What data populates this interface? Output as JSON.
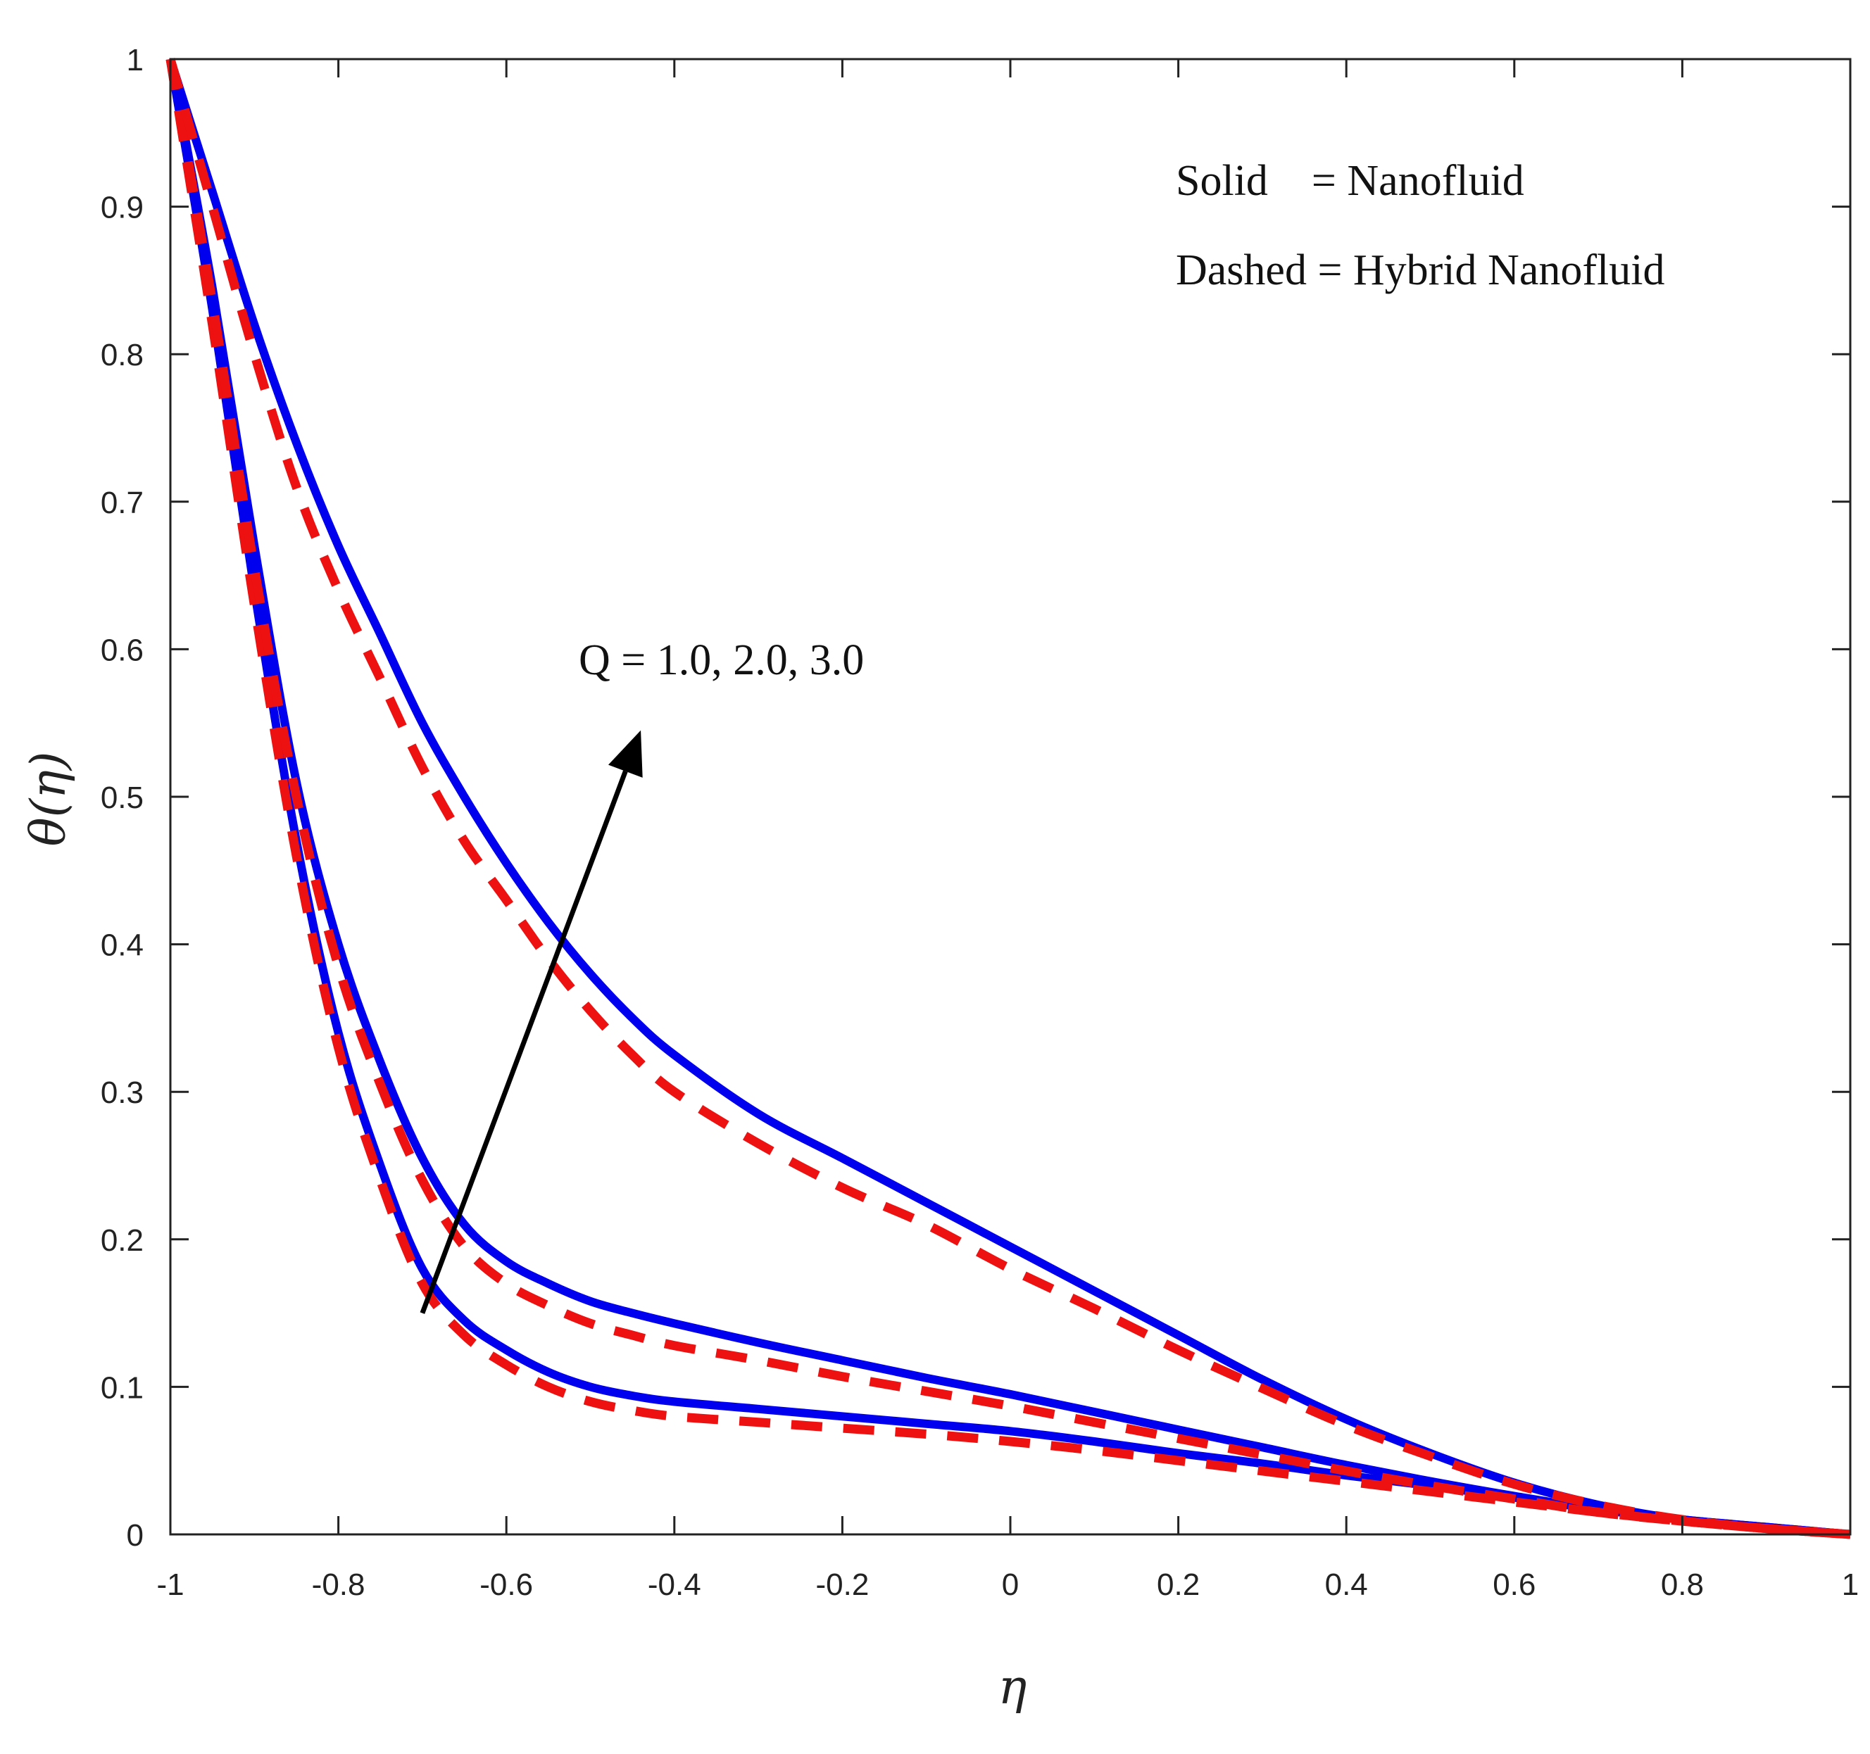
{
  "chart_data": {
    "type": "line",
    "title": "",
    "xlabel": "η",
    "ylabel": "θ(η)",
    "xlim": [
      -1,
      1
    ],
    "ylim": [
      0,
      1
    ],
    "xticks": [
      -1,
      -0.8,
      -0.6,
      -0.4,
      -0.2,
      0,
      0.2,
      0.4,
      0.6,
      0.8,
      1
    ],
    "xtick_labels": [
      "-1",
      "-0.8",
      "-0.6",
      "-0.4",
      "-0.2",
      "0",
      "0.2",
      "0.4",
      "0.6",
      "0.8",
      "1"
    ],
    "yticks": [
      0,
      0.1,
      0.2,
      0.3,
      0.4,
      0.5,
      0.6,
      0.7,
      0.8,
      0.9,
      1
    ],
    "ytick_labels": [
      "0",
      "0.1",
      "0.2",
      "0.3",
      "0.4",
      "0.5",
      "0.6",
      "0.7",
      "0.8",
      "0.9",
      "1"
    ],
    "legend": {
      "solid": "Solid    = Nanofluid",
      "dashed": "Dashed = Hybrid Nanofluid"
    },
    "annotation": {
      "text": "Q = 1.0, 2.0, 3.0",
      "arrow_from": [
        -0.7,
        0.15
      ],
      "arrow_to": [
        -0.44,
        0.545
      ]
    },
    "colors": {
      "solid": "#0000ee",
      "dashed": "#ee1111",
      "arrow": "#000000",
      "axes": "#222222"
    },
    "series": [
      {
        "name": "Nanofluid, Q = 1.0",
        "style": "solid",
        "x": [
          -1,
          -0.95,
          -0.9,
          -0.85,
          -0.8,
          -0.75,
          -0.7,
          -0.65,
          -0.6,
          -0.55,
          -0.5,
          -0.45,
          -0.4,
          -0.3,
          -0.2,
          -0.1,
          0,
          0.1,
          0.2,
          0.3,
          0.4,
          0.5,
          0.6,
          0.7,
          0.8,
          0.9,
          1
        ],
        "y": [
          1,
          0.83,
          0.64,
          0.47,
          0.34,
          0.25,
          0.18,
          0.145,
          0.125,
          0.11,
          0.1,
          0.094,
          0.09,
          0.085,
          0.08,
          0.075,
          0.07,
          0.063,
          0.055,
          0.048,
          0.04,
          0.033,
          0.025,
          0.017,
          0.01,
          0.005,
          0
        ]
      },
      {
        "name": "Hybrid Nanofluid, Q = 1.0",
        "style": "dashed",
        "x": [
          -1,
          -0.95,
          -0.9,
          -0.85,
          -0.8,
          -0.75,
          -0.7,
          -0.65,
          -0.6,
          -0.55,
          -0.5,
          -0.45,
          -0.4,
          -0.3,
          -0.2,
          -0.1,
          0,
          0.1,
          0.2,
          0.3,
          0.4,
          0.5,
          0.6,
          0.7,
          0.8,
          0.9,
          1
        ],
        "y": [
          1,
          0.82,
          0.63,
          0.46,
          0.33,
          0.24,
          0.17,
          0.135,
          0.115,
          0.1,
          0.09,
          0.084,
          0.08,
          0.076,
          0.072,
          0.068,
          0.063,
          0.057,
          0.05,
          0.043,
          0.036,
          0.029,
          0.022,
          0.015,
          0.009,
          0.004,
          0
        ]
      },
      {
        "name": "Nanofluid, Q = 2.0",
        "style": "solid",
        "x": [
          -1,
          -0.95,
          -0.9,
          -0.85,
          -0.8,
          -0.75,
          -0.7,
          -0.65,
          -0.6,
          -0.55,
          -0.5,
          -0.45,
          -0.4,
          -0.3,
          -0.2,
          -0.1,
          0,
          0.1,
          0.2,
          0.3,
          0.4,
          0.5,
          0.6,
          0.7,
          0.8,
          0.9,
          1
        ],
        "y": [
          1,
          0.845,
          0.67,
          0.51,
          0.4,
          0.32,
          0.255,
          0.21,
          0.185,
          0.17,
          0.158,
          0.15,
          0.143,
          0.13,
          0.118,
          0.106,
          0.095,
          0.083,
          0.071,
          0.059,
          0.047,
          0.036,
          0.026,
          0.017,
          0.01,
          0.005,
          0
        ]
      },
      {
        "name": "Hybrid Nanofluid, Q = 2.0",
        "style": "dashed",
        "x": [
          -1,
          -0.95,
          -0.9,
          -0.85,
          -0.8,
          -0.75,
          -0.7,
          -0.65,
          -0.6,
          -0.55,
          -0.5,
          -0.45,
          -0.4,
          -0.3,
          -0.2,
          -0.1,
          0,
          0.1,
          0.2,
          0.3,
          0.4,
          0.5,
          0.6,
          0.7,
          0.8,
          0.9,
          1
        ],
        "y": [
          1,
          0.835,
          0.655,
          0.5,
          0.385,
          0.305,
          0.24,
          0.195,
          0.17,
          0.155,
          0.143,
          0.135,
          0.128,
          0.118,
          0.107,
          0.097,
          0.087,
          0.076,
          0.065,
          0.054,
          0.043,
          0.033,
          0.024,
          0.015,
          0.009,
          0.004,
          0
        ]
      },
      {
        "name": "Nanofluid, Q = 3.0",
        "style": "solid",
        "x": [
          -1,
          -0.95,
          -0.9,
          -0.85,
          -0.8,
          -0.75,
          -0.7,
          -0.65,
          -0.6,
          -0.55,
          -0.5,
          -0.45,
          -0.4,
          -0.3,
          -0.2,
          -0.1,
          0,
          0.1,
          0.2,
          0.3,
          0.4,
          0.5,
          0.6,
          0.7,
          0.8,
          0.9,
          1
        ],
        "y": [
          1,
          0.91,
          0.82,
          0.74,
          0.67,
          0.61,
          0.55,
          0.5,
          0.455,
          0.415,
          0.38,
          0.35,
          0.325,
          0.285,
          0.255,
          0.225,
          0.195,
          0.165,
          0.135,
          0.105,
          0.078,
          0.055,
          0.035,
          0.02,
          0.01,
          0.004,
          0
        ]
      },
      {
        "name": "Hybrid Nanofluid, Q = 3.0",
        "style": "dashed",
        "x": [
          -1,
          -0.95,
          -0.9,
          -0.85,
          -0.8,
          -0.75,
          -0.7,
          -0.65,
          -0.6,
          -0.55,
          -0.5,
          -0.45,
          -0.4,
          -0.3,
          -0.2,
          -0.1,
          0,
          0.1,
          0.2,
          0.3,
          0.4,
          0.5,
          0.6,
          0.7,
          0.8,
          0.9,
          1
        ],
        "y": [
          1,
          0.9,
          0.8,
          0.71,
          0.64,
          0.58,
          0.52,
          0.47,
          0.43,
          0.39,
          0.355,
          0.325,
          0.3,
          0.265,
          0.235,
          0.21,
          0.18,
          0.153,
          0.125,
          0.099,
          0.074,
          0.053,
          0.034,
          0.02,
          0.01,
          0.004,
          0
        ]
      }
    ]
  }
}
